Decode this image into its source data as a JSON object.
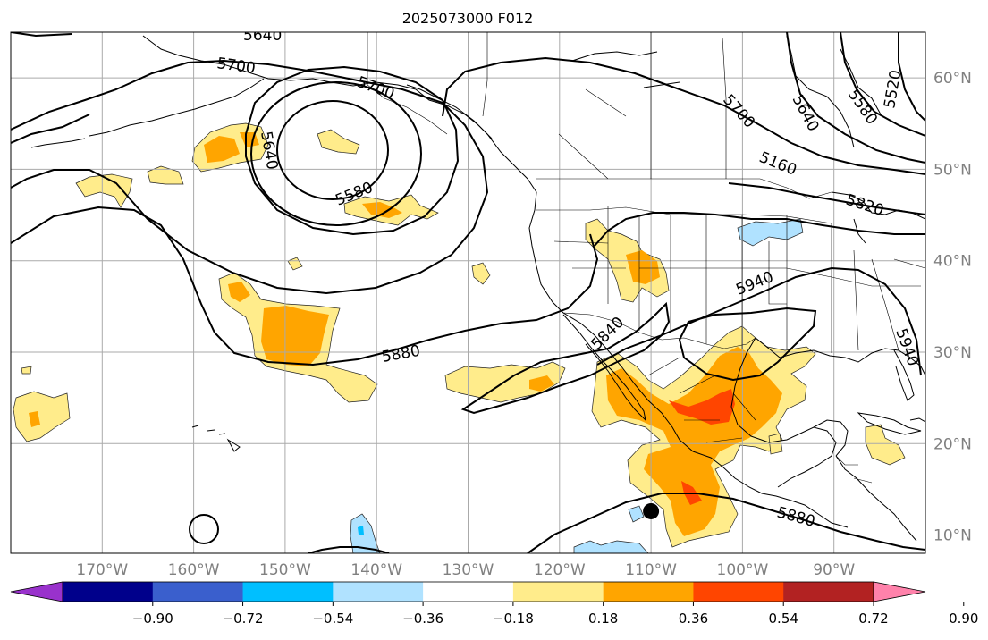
{
  "title": "2025073000 F012",
  "map": {
    "lon_range": [
      -180,
      -80
    ],
    "lat_range": [
      8,
      65
    ],
    "lon_ticks": [
      {
        "lon": -170,
        "label": "170°W"
      },
      {
        "lon": -160,
        "label": "160°W"
      },
      {
        "lon": -150,
        "label": "150°W"
      },
      {
        "lon": -140,
        "label": "140°W"
      },
      {
        "lon": -130,
        "label": "130°W"
      },
      {
        "lon": -120,
        "label": "120°W"
      },
      {
        "lon": -110,
        "label": "110°W"
      },
      {
        "lon": -100,
        "label": "100°W"
      },
      {
        "lon": -90,
        "label": "90°W"
      }
    ],
    "lat_ticks": [
      {
        "lat": 10,
        "label": "10°N"
      },
      {
        "lat": 20,
        "label": "20°N"
      },
      {
        "lat": 30,
        "label": "30°N"
      },
      {
        "lat": 40,
        "label": "40°N"
      },
      {
        "lat": 50,
        "label": "50°N"
      },
      {
        "lat": 60,
        "label": "60°N"
      }
    ],
    "contour_labels": [
      "5640",
      "5700",
      "5700",
      "5640",
      "5580",
      "5880",
      "5840",
      "5940",
      "5880",
      "5700",
      "5640",
      "5580",
      "5520",
      "5160",
      "5820",
      "5940"
    ],
    "marker": {
      "type": "filled-circle",
      "lon": -110,
      "lat": 12.6
    }
  },
  "colorbar": {
    "colors": [
      "#9932cc",
      "#00008b",
      "#3a5fcd",
      "#00bfff",
      "#b0e2ff",
      "#ffffff",
      "#ffec8b",
      "#ffa500",
      "#ff4500",
      "#b22222",
      "#ff82ab"
    ],
    "ticks": [
      "−0.90",
      "−0.72",
      "−0.54",
      "−0.36",
      "−0.18",
      "0.18",
      "0.36",
      "0.54",
      "0.72",
      "0.90"
    ]
  },
  "colors": {
    "light_yellow": "#ffec8b",
    "orange": "#ffa500",
    "red_orange": "#ff4500",
    "light_blue": "#b0e2ff",
    "deep_sky_blue": "#00bfff",
    "grid": "#aaaaaa",
    "axis_label": "#808080"
  }
}
